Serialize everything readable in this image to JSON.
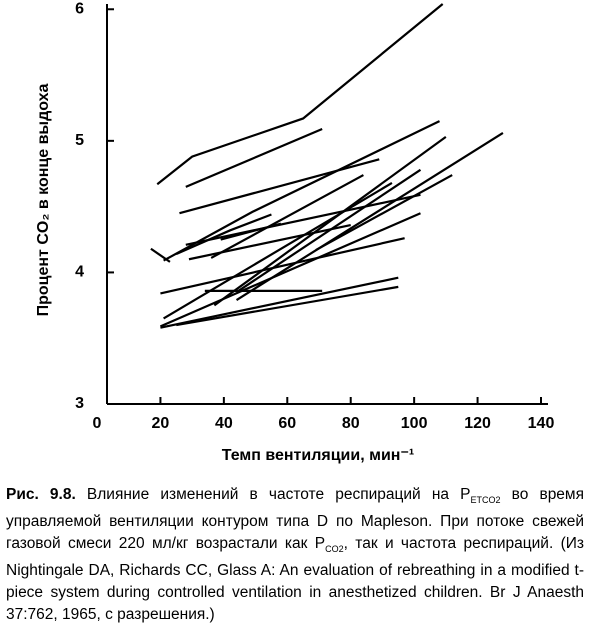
{
  "chart_data": {
    "type": "line",
    "y_label": "Процент CO₂ в конце выдоха",
    "x_label": "Темп вентиляции, мин⁻¹",
    "xlim": [
      0,
      140
    ],
    "xticks": [
      0,
      20,
      40,
      60,
      80,
      100,
      120,
      140
    ],
    "ylim": [
      3,
      6.04
    ],
    "yticks": [
      3,
      4,
      5,
      6
    ],
    "series": [
      {
        "color": "#000000",
        "x": [
          19,
          30,
          65,
          109
        ],
        "values": [
          4.67,
          4.88,
          5.17,
          6.04
        ]
      },
      {
        "color": "#000000",
        "x": [
          28,
          71
        ],
        "values": [
          4.65,
          5.09
        ]
      },
      {
        "color": "#000000",
        "x": [
          26,
          89
        ],
        "values": [
          4.45,
          4.86
        ]
      },
      {
        "color": "#000000",
        "x": [
          21,
          49,
          108
        ],
        "values": [
          4.09,
          4.46,
          5.15
        ]
      },
      {
        "color": "#000000",
        "x": [
          17,
          23
        ],
        "values": [
          4.18,
          4.08
        ]
      },
      {
        "color": "#000000",
        "x": [
          25,
          42,
          55
        ],
        "values": [
          4.14,
          4.32,
          4.44
        ]
      },
      {
        "color": "#000000",
        "x": [
          28,
          102
        ],
        "values": [
          4.21,
          4.59
        ]
      },
      {
        "color": "#000000",
        "x": [
          21,
          93
        ],
        "values": [
          3.65,
          4.68
        ]
      },
      {
        "color": "#000000",
        "x": [
          20,
          102
        ],
        "values": [
          3.59,
          4.45
        ]
      },
      {
        "color": "#000000",
        "x": [
          20,
          97
        ],
        "values": [
          3.84,
          4.26
        ]
      },
      {
        "color": "#000000",
        "x": [
          20,
          95
        ],
        "values": [
          3.58,
          3.96
        ]
      },
      {
        "color": "#000000",
        "x": [
          25,
          95
        ],
        "values": [
          3.6,
          3.89
        ]
      },
      {
        "color": "#000000",
        "x": [
          34,
          71
        ],
        "values": [
          3.86,
          3.86
        ]
      },
      {
        "color": "#000000",
        "x": [
          37,
          110
        ],
        "values": [
          3.75,
          5.03
        ]
      },
      {
        "color": "#000000",
        "x": [
          44,
          128
        ],
        "values": [
          3.79,
          5.06
        ]
      },
      {
        "color": "#000000",
        "x": [
          36,
          84
        ],
        "values": [
          4.11,
          4.74
        ]
      },
      {
        "color": "#000000",
        "x": [
          29,
          80
        ],
        "values": [
          4.1,
          4.36
        ]
      },
      {
        "color": "#000000",
        "x": [
          44,
          102
        ],
        "values": [
          3.85,
          4.78
        ]
      },
      {
        "color": "#000000",
        "x": [
          69,
          112
        ],
        "values": [
          4.17,
          4.74
        ]
      },
      {
        "color": "#000000",
        "x": [
          39,
          58
        ],
        "values": [
          4.25,
          4.37
        ]
      }
    ]
  },
  "caption": {
    "label": "Рис. 9.8.",
    "parts": [
      " Влияние изменений в частоте респираций на P",
      "ETCO2",
      " во время управляемой вентиляции контуром типа D по Mapleson. При потоке свежей газовой смеси 220 мл/кг возрастали как P",
      "CO2",
      ", так и частота респираций. (Из Nightingale DA, Richards CC, Glass A: An evaluation of rebreathing in a modified t-piece system during controlled ventilation in anesthetized children. Br J Anaesth 37:762, 1965, с разрешения.)"
    ]
  }
}
